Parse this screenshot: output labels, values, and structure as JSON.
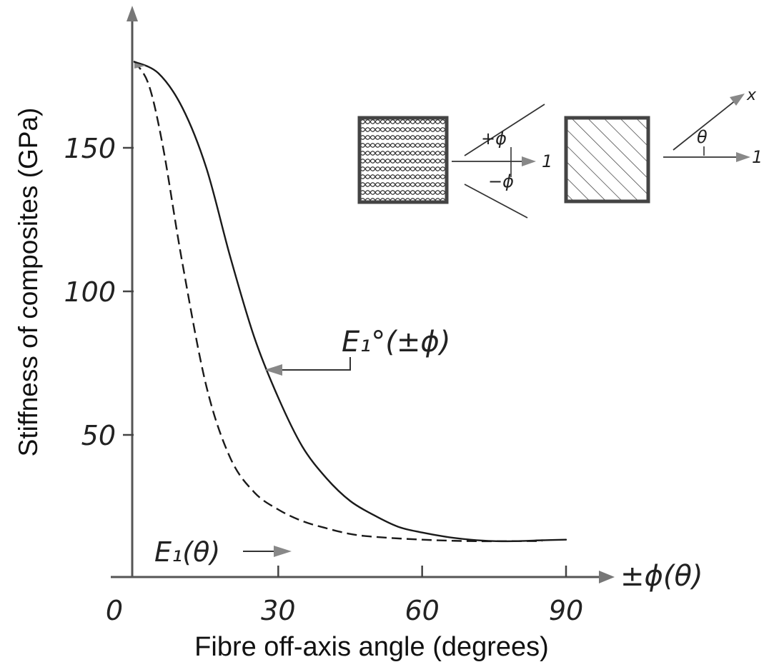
{
  "chart_data": {
    "type": "line",
    "ylabel": "Stiffness of composites (GPa)",
    "xlabel": "Fibre off-axis angle (degrees)",
    "x_axis_symbol": "±ϕ(θ)",
    "xlim": [
      0,
      90
    ],
    "ylim": [
      0,
      180
    ],
    "x_ticks": [
      "0",
      "30",
      "60",
      "90"
    ],
    "y_ticks": [
      "50",
      "100",
      "150"
    ],
    "grid": false,
    "series": [
      {
        "name": "E₁°(±ϕ)",
        "style": "solid",
        "color": "#1a1a1a",
        "x": [
          0,
          5,
          10,
          15,
          20,
          25,
          30,
          35,
          40,
          45,
          50,
          55,
          60,
          65,
          70,
          75,
          80,
          85,
          90
        ],
        "y": [
          180,
          176,
          164,
          143,
          112,
          84,
          63,
          46,
          35,
          27,
          22,
          18,
          16,
          14.5,
          13.5,
          13,
          13,
          13.3,
          13.5
        ]
      },
      {
        "name": "E₁(θ)",
        "style": "dashed",
        "color": "#1a1a1a",
        "x": [
          0,
          3,
          6,
          10,
          15,
          20,
          25,
          30,
          35,
          40,
          45,
          50,
          60,
          70,
          80,
          85
        ],
        "y": [
          180,
          172,
          150,
          110,
          67,
          42,
          30,
          24,
          20,
          17.5,
          15.5,
          14.5,
          13.5,
          13,
          13,
          13
        ]
      }
    ],
    "annotations": {
      "solid_curve": "E₁°(±ϕ)",
      "dashed_curve": "E₁(θ)",
      "inset_plus_angle": "+ϕ",
      "inset_minus_angle": "−ϕ",
      "inset_direction_1": "1",
      "inset_direction_2": "1",
      "inset_theta": "θ",
      "inset_x": "x"
    }
  }
}
